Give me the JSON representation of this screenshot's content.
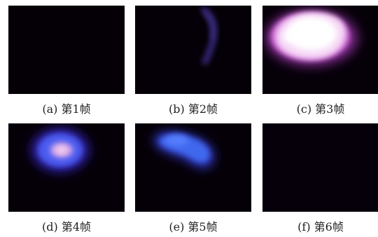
{
  "figure": {
    "panels": [
      {
        "caption": "(a) 第1帧",
        "frame": 1
      },
      {
        "caption": "(b) 第2帧",
        "frame": 2
      },
      {
        "caption": "(c) 第3帧",
        "frame": 3
      },
      {
        "caption": "(d) 第4帧",
        "frame": 4
      },
      {
        "caption": "(e) 第5帧",
        "frame": 5
      },
      {
        "caption": "(f) 第6帧",
        "frame": 6
      }
    ],
    "colors": {
      "background": "#050008",
      "glow_white": "#ffffff",
      "glow_pink": "#e89be8",
      "glow_blue": "#3f5bff",
      "glow_violet": "#5a3fae"
    }
  }
}
